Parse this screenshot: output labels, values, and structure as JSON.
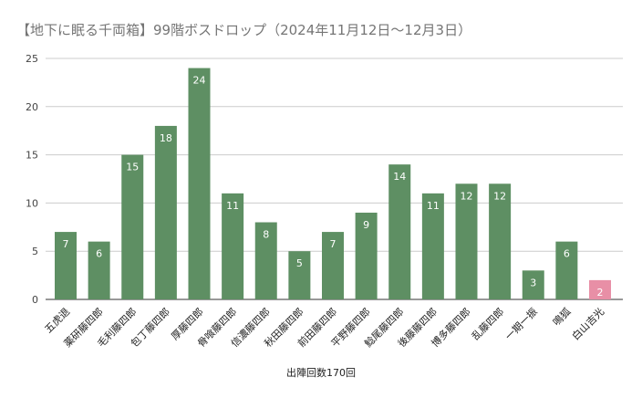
{
  "chart_data": {
    "type": "bar",
    "title": "【地下に眠る千両箱】99階ボスドロップ（2024年11月12日～12月3日）",
    "xlabel": "出陣回数170回",
    "ylabel": "",
    "ylim": [
      0,
      25
    ],
    "yticks": [
      0,
      5,
      10,
      15,
      20,
      25
    ],
    "grid": true,
    "categories": [
      "五虎退",
      "薬研藤四郎",
      "毛利藤四郎",
      "包丁藤四郎",
      "厚藤四郎",
      "骨喰藤四郎",
      "信濃藤四郎",
      "秋田藤四郎",
      "前田藤四郎",
      "平野藤四郎",
      "鯰尾藤四郎",
      "後藤藤四郎",
      "博多藤四郎",
      "乱藤四郎",
      "一期一振",
      "鳴狐",
      "白山吉光"
    ],
    "values": [
      7,
      6,
      15,
      18,
      24,
      11,
      8,
      5,
      7,
      9,
      14,
      11,
      12,
      12,
      3,
      6,
      2
    ],
    "colors": {
      "default": "#5e8f63",
      "highlight": "#e88fa6",
      "highlight_index": 16
    }
  }
}
